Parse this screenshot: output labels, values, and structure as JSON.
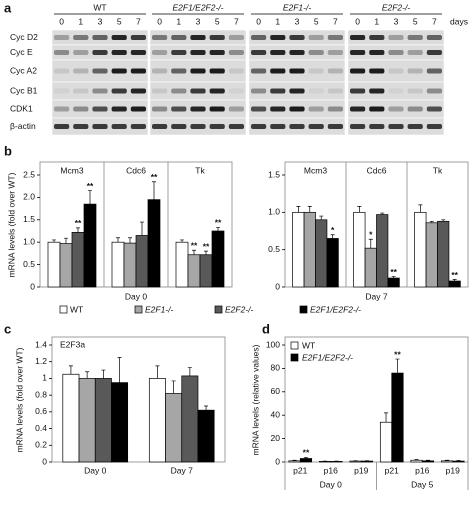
{
  "blot": {
    "label": "a",
    "genotypes": [
      "WT",
      "E2F1/E2F2-/-",
      "E2F1-/-",
      "E2F2-/-"
    ],
    "days": [
      0,
      1,
      3,
      5,
      7
    ],
    "days_label": "days",
    "rows": [
      "Cyc D2",
      "Cyc E",
      "Cyc A2",
      "Cyc B1",
      "CDK1",
      "β-actin"
    ]
  },
  "chart_data": [
    {
      "label": "b",
      "type": "bar",
      "ylabel": "mRNA levels (fold over WT)",
      "series": [
        {
          "name": "WT",
          "color": "#ffffff"
        },
        {
          "name": "E2F1-/-",
          "color": "#a6a6a6"
        },
        {
          "name": "E2F2-/-",
          "color": "#595959"
        },
        {
          "name": "E2F1/E2F2-/-",
          "color": "#000000"
        }
      ],
      "facets": [
        {
          "xlabel": "Day 0",
          "ylim": [
            0,
            2.5
          ],
          "yticks": [
            0,
            0.5,
            {
              "value": 1,
              "label": "1.0"
            },
            1.5,
            {
              "value": 2,
              "label": "2.0"
            },
            2.5
          ],
          "categories": [
            "Mcm3",
            "Cdc6",
            "Tk"
          ],
          "series": [
            {
              "values": [
                1.0,
                1.0,
                1.0
              ],
              "errors": [
                0.05,
                0.1,
                0.05
              ]
            },
            {
              "values": [
                0.97,
                0.98,
                0.72
              ],
              "errors": [
                0.12,
                0.12,
                0.1
              ],
              "stars": [
                null,
                null,
                "**"
              ]
            },
            {
              "values": [
                1.22,
                1.15,
                0.72
              ],
              "errors": [
                0.1,
                0.3,
                0.08
              ],
              "stars": [
                "**",
                null,
                "**"
              ]
            },
            {
              "values": [
                1.85,
                1.95,
                1.25
              ],
              "errors": [
                0.3,
                0.4,
                0.08
              ],
              "stars": [
                "**",
                "**",
                "**"
              ]
            }
          ]
        },
        {
          "xlabel": "Day 7",
          "ylim": [
            0,
            1.5
          ],
          "yticks": [
            0,
            0.5,
            {
              "value": 1,
              "label": "1.0"
            },
            1.5
          ],
          "categories": [
            "Mcm3",
            "Cdc6",
            "Tk"
          ],
          "series": [
            {
              "values": [
                1.0,
                1.0,
                1.0
              ],
              "errors": [
                0.08,
                0.08,
                0.1
              ]
            },
            {
              "values": [
                1.0,
                0.52,
                0.86
              ],
              "errors": [
                0.08,
                0.12,
                0.02
              ],
              "stars": [
                null,
                "*",
                null
              ]
            },
            {
              "values": [
                0.9,
                0.97,
                0.88
              ],
              "errors": [
                0.05,
                0.02,
                0.02
              ]
            },
            {
              "values": [
                0.65,
                0.12,
                0.08
              ],
              "errors": [
                0.05,
                0.02,
                0.02
              ],
              "stars": [
                "*",
                "**",
                "**"
              ]
            }
          ]
        }
      ]
    },
    {
      "label": "c",
      "type": "bar",
      "title": "E2F3a",
      "ylabel": "mRNA levels (fold over WT)",
      "series": [
        {
          "color": "#ffffff"
        },
        {
          "color": "#a6a6a6"
        },
        {
          "color": "#595959"
        },
        {
          "color": "#000000"
        }
      ],
      "facets": [
        {
          "ylim": [
            0,
            1.4
          ],
          "yticks": [
            0,
            0.2,
            0.4,
            0.6,
            0.8,
            1,
            1.2,
            1.4
          ],
          "categories": [
            "Day 0",
            "Day 7"
          ],
          "series": [
            {
              "values": [
                1.05,
                1.0
              ],
              "errors": [
                0.1,
                0.15
              ]
            },
            {
              "values": [
                1.0,
                0.82
              ],
              "errors": [
                0.08,
                0.15
              ]
            },
            {
              "values": [
                1.0,
                1.03
              ],
              "errors": [
                0.1,
                0.1
              ]
            },
            {
              "values": [
                0.95,
                0.62
              ],
              "errors": [
                0.3,
                0.05
              ]
            }
          ]
        }
      ]
    },
    {
      "label": "d",
      "type": "bar",
      "ylabel": "mRNA levels (relative values)",
      "series": [
        {
          "name": "WT",
          "color": "#ffffff"
        },
        {
          "name": "E2F1/E2F2-/-",
          "color": "#000000"
        }
      ],
      "facets": [
        {
          "ylim": [
            0,
            100
          ],
          "yticks": [
            0,
            20,
            40,
            60,
            80,
            100
          ],
          "categories": [
            "p21",
            "p16",
            "p19",
            "p21",
            "p16",
            "p19"
          ],
          "group_labels": [
            "Day 0",
            "Day 5"
          ],
          "series": [
            {
              "values": [
                1,
                0.5,
                0.8,
                34,
                1.5,
                1
              ],
              "errors": [
                0.5,
                0.3,
                0.3,
                8,
                0.5,
                0.5
              ]
            },
            {
              "values": [
                3,
                0.5,
                0.8,
                76,
                1,
                0.8
              ],
              "errors": [
                1,
                0.3,
                0.3,
                12,
                0.5,
                0.5
              ],
              "stars": [
                "**",
                null,
                null,
                "**",
                null,
                null
              ]
            }
          ]
        }
      ]
    }
  ]
}
